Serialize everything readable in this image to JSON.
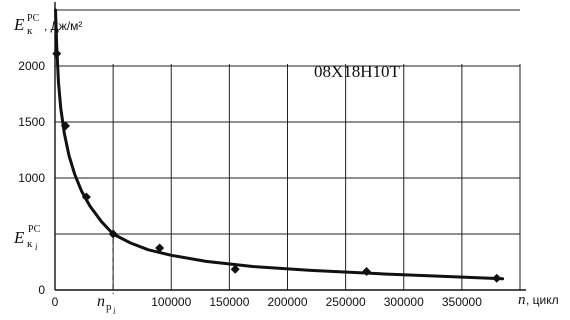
{
  "chart_data": {
    "type": "line",
    "title": "",
    "annotation": "08Х18Н10Т",
    "ylabel": {
      "symbol": "E",
      "subscript": "к",
      "superscript": "РС",
      "unit": ", Дж/м²"
    },
    "xlabel": {
      "symbol": "n",
      "unit": ", цикл"
    },
    "xlim": [
      0,
      400000
    ],
    "ylim": [
      0,
      2500
    ],
    "x_ticks": [
      0,
      50000,
      100000,
      150000,
      200000,
      250000,
      300000,
      350000
    ],
    "x_tick_labels": [
      "0",
      "",
      "100000",
      "150000",
      "200000",
      "250000",
      "300000",
      "350000"
    ],
    "y_ticks": [
      0,
      500,
      1000,
      1500,
      2000,
      2500
    ],
    "y_tick_labels": [
      "0",
      "",
      "1000",
      "1500",
      "2000",
      ""
    ],
    "grid": true,
    "points": [
      {
        "x": 1500,
        "y": 2110
      },
      {
        "x": 9000,
        "y": 1465
      },
      {
        "x": 27000,
        "y": 830
      },
      {
        "x": 50000,
        "y": 500
      },
      {
        "x": 90000,
        "y": 375
      },
      {
        "x": 155000,
        "y": 185
      },
      {
        "x": 268000,
        "y": 165
      },
      {
        "x": 380000,
        "y": 105
      }
    ],
    "fit_curve": {
      "x": [
        400,
        1500,
        3000,
        5000,
        8000,
        12000,
        17000,
        23000,
        30000,
        40000,
        50000,
        65000,
        80000,
        100000,
        130000,
        170000,
        220000,
        280000,
        340000,
        385000
      ],
      "y": [
        2500,
        2180,
        1850,
        1620,
        1400,
        1200,
        1030,
        880,
        750,
        610,
        500,
        420,
        360,
        310,
        255,
        210,
        175,
        145,
        120,
        100
      ]
    },
    "marked_point": {
      "x": 50000,
      "y": 500,
      "x_label": {
        "symbol": "n",
        "subscript": "р",
        "sub_subscript": "i"
      },
      "y_label": {
        "symbol": "E",
        "subscript": "к",
        "sub_subscript": "i",
        "superscript": "РС"
      }
    }
  }
}
